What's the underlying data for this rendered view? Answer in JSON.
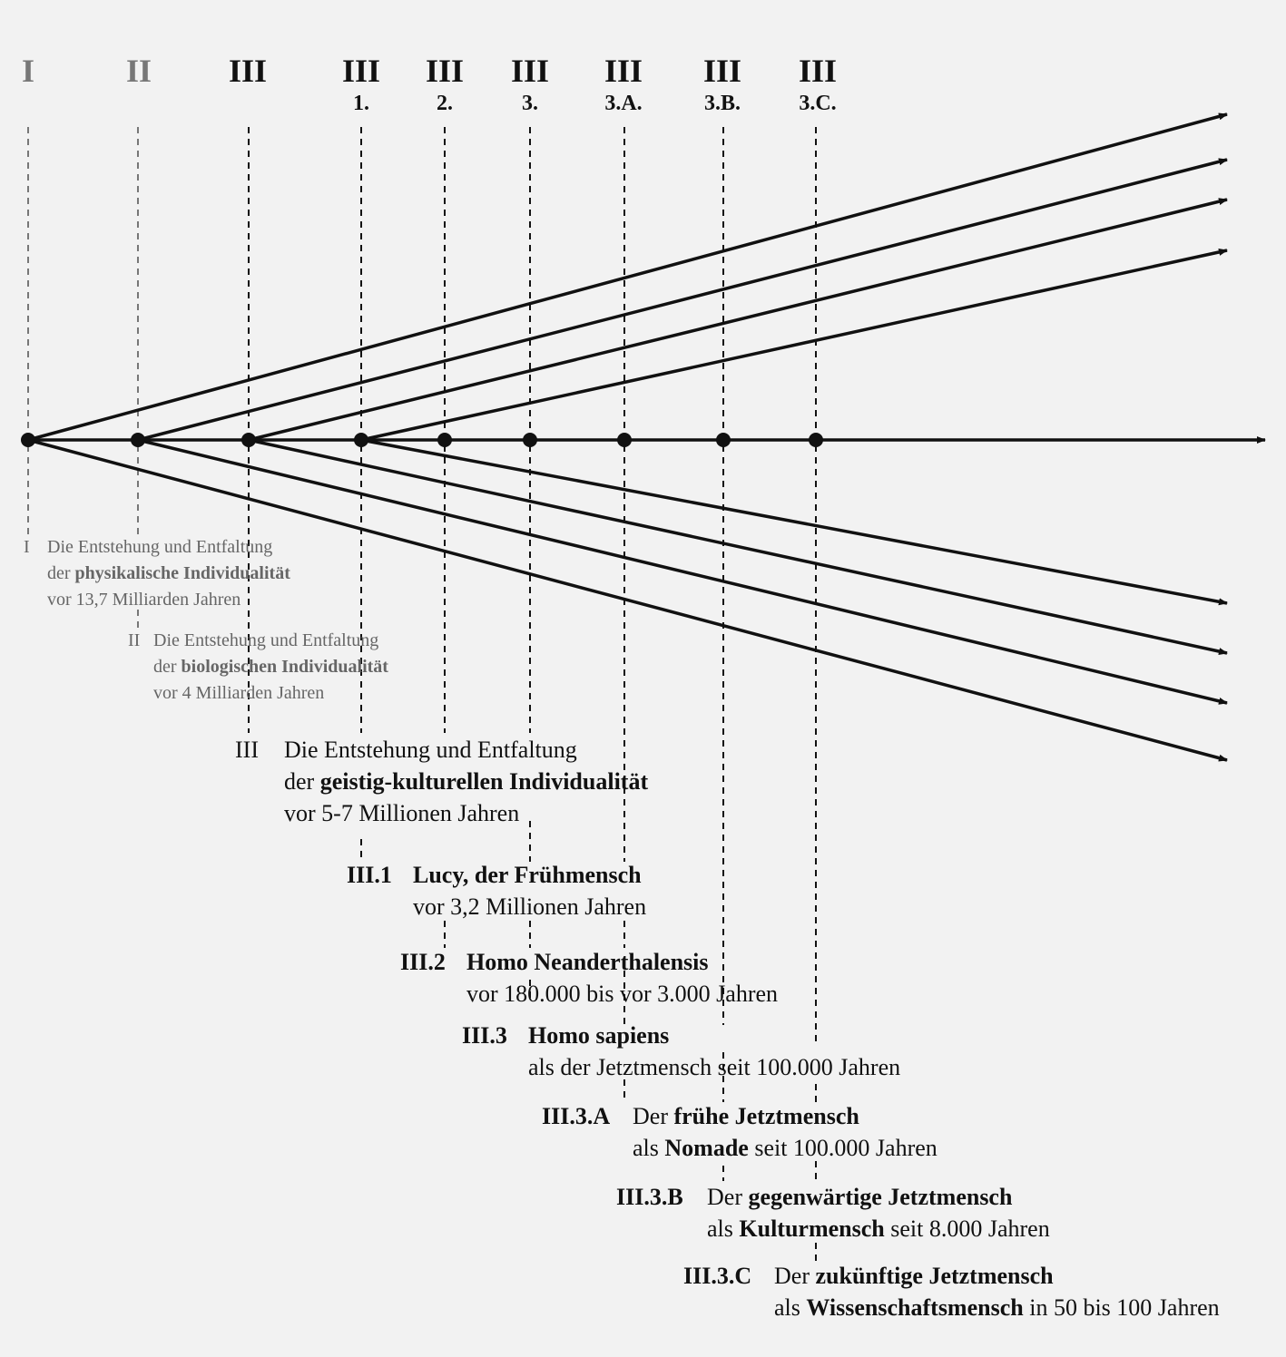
{
  "headers": [
    {
      "roman": "I",
      "sub": "",
      "tone": "grey"
    },
    {
      "roman": "II",
      "sub": "",
      "tone": "grey"
    },
    {
      "roman": "III",
      "sub": "",
      "tone": "black"
    },
    {
      "roman": "III",
      "sub": "1.",
      "tone": "black"
    },
    {
      "roman": "III",
      "sub": "2.",
      "tone": "black"
    },
    {
      "roman": "III",
      "sub": "3.",
      "tone": "black"
    },
    {
      "roman": "III",
      "sub": "3.A.",
      "tone": "black"
    },
    {
      "roman": "III",
      "sub": "3.B.",
      "tone": "black"
    },
    {
      "roman": "III",
      "sub": "3.C.",
      "tone": "black"
    }
  ],
  "labels": {
    "I": {
      "tag": "I",
      "line1": "Die Entstehung und Entfaltung",
      "line2_pre": "der ",
      "line2_bold": "physikalische Individualität",
      "line2_post": "",
      "line3": "vor 13,7 Milliarden Jahren"
    },
    "II": {
      "tag": "II",
      "line1": "Die Entstehung und Entfaltung",
      "line2_pre": "der ",
      "line2_bold": "biologischen Individualität",
      "line2_post": "",
      "line3": "vor 4 Milliarden Jahren"
    },
    "III": {
      "tag": "III",
      "line1": "Die Entstehung und Entfaltung",
      "line2_pre": "der ",
      "line2_bold": "geistig-kulturellen Individualität",
      "line2_post": "",
      "line3": "vor 5-7 Millionen Jahren"
    },
    "III_1": {
      "tag": "III.1",
      "line1_bold": "Lucy, der Frühmensch",
      "line2": "vor 3,2 Millionen Jahren"
    },
    "III_2": {
      "tag": "III.2",
      "line1_bold": "Homo Neanderthalensis",
      "line2": "vor 180.000 bis vor 3.000 Jahren"
    },
    "III_3": {
      "tag": "III.3",
      "line1_bold": "Homo sapiens",
      "line2": "als der Jetztmensch seit 100.000 Jahren"
    },
    "III_3A": {
      "tag": "III.3.A",
      "line1_pre": "Der ",
      "line1_bold": "frühe Jetztmensch",
      "line2_pre": "als ",
      "line2_bold": "Nomade",
      "line2_post": " seit 100.000 Jahren"
    },
    "III_3B": {
      "tag": "III.3.B",
      "line1_pre": "Der ",
      "line1_bold": "gegenwärtige Jetztmensch",
      "line2_pre": "als ",
      "line2_bold": "Kulturmensch",
      "line2_post": " seit 8.000 Jahren"
    },
    "III_3C": {
      "tag": "III.3.C",
      "line1_pre": "Der ",
      "line1_bold": "zukünftige Jetztmensch",
      "line2_pre": "als ",
      "line2_bold": "Wissenschaftsmensch",
      "line2_post": " in 50 bis 100 Jahren"
    }
  },
  "colors": {
    "line": "#111111",
    "muted": "#666666",
    "mutedDash": "#777777",
    "background": "#f2f2f2"
  }
}
